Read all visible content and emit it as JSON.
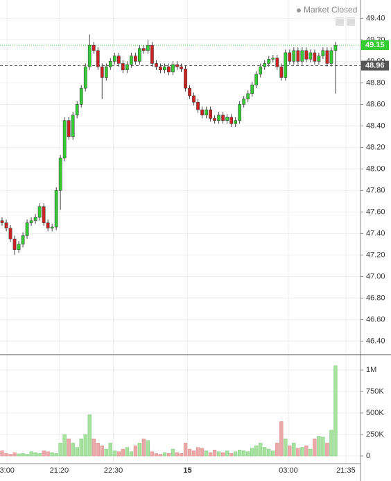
{
  "chart_data": {
    "type": "candlestick",
    "status": "Market Closed",
    "open": [
      47.52,
      47.5,
      47.45,
      47.35,
      47.25,
      47.3,
      47.38,
      47.5,
      47.52,
      47.55,
      47.65,
      47.5,
      47.45,
      47.46,
      47.8,
      48.1,
      48.45,
      48.3,
      48.5,
      48.6,
      48.75,
      48.95,
      49.15,
      49.1,
      48.95,
      48.85,
      48.95,
      49.0,
      49.05,
      48.98,
      48.92,
      48.97,
      49.05,
      49.0,
      49.12,
      49.1,
      49.15,
      48.98,
      48.95,
      48.92,
      48.95,
      48.9,
      48.97,
      48.95,
      48.93,
      48.75,
      48.68,
      48.62,
      48.55,
      48.5,
      48.55,
      48.47,
      48.45,
      48.5,
      48.45,
      48.48,
      48.42,
      48.45,
      48.6,
      48.65,
      48.7,
      48.78,
      48.88,
      48.95,
      48.98,
      49.02,
      49.03,
      48.95,
      48.85,
      49.08,
      49.0,
      49.1,
      49.0,
      49.1,
      49.02,
      49.08,
      49.0,
      49.05,
      49.1,
      48.98,
      49.1
    ],
    "high": [
      47.55,
      47.53,
      47.48,
      47.38,
      47.33,
      47.41,
      47.53,
      47.55,
      47.58,
      47.68,
      47.68,
      47.53,
      47.49,
      47.83,
      48.13,
      48.48,
      48.48,
      48.53,
      48.63,
      48.78,
      48.98,
      49.25,
      49.18,
      49.13,
      48.98,
      48.98,
      49.03,
      49.08,
      49.08,
      49.01,
      49.0,
      49.08,
      49.08,
      49.15,
      49.15,
      49.2,
      49.18,
      49.01,
      48.98,
      48.98,
      48.98,
      49.0,
      49.0,
      48.98,
      48.96,
      48.78,
      48.71,
      48.65,
      48.58,
      48.58,
      48.58,
      48.5,
      48.53,
      48.53,
      48.51,
      48.51,
      48.48,
      48.63,
      48.68,
      48.73,
      48.81,
      48.91,
      48.98,
      49.01,
      49.05,
      49.06,
      49.06,
      48.98,
      49.11,
      49.11,
      49.13,
      49.13,
      49.13,
      49.13,
      49.11,
      49.11,
      49.08,
      49.13,
      49.13,
      49.13,
      49.18
    ],
    "low": [
      47.47,
      47.42,
      47.32,
      47.2,
      47.22,
      47.27,
      47.35,
      47.47,
      47.49,
      47.52,
      47.47,
      47.42,
      47.42,
      47.43,
      47.62,
      48.07,
      48.27,
      48.27,
      48.47,
      48.57,
      48.72,
      48.92,
      49.07,
      48.92,
      48.65,
      48.82,
      48.92,
      48.97,
      48.95,
      48.89,
      48.89,
      48.94,
      48.97,
      48.97,
      49.07,
      49.07,
      48.95,
      48.92,
      48.89,
      48.89,
      48.87,
      48.87,
      48.92,
      48.9,
      48.72,
      48.65,
      48.59,
      48.52,
      48.47,
      48.47,
      48.44,
      48.42,
      48.42,
      48.42,
      48.42,
      48.39,
      48.39,
      48.42,
      48.57,
      48.62,
      48.67,
      48.75,
      48.85,
      48.92,
      48.95,
      48.99,
      48.92,
      48.82,
      48.82,
      48.97,
      48.97,
      48.97,
      48.97,
      48.99,
      48.99,
      48.97,
      48.97,
      49.02,
      48.95,
      48.95,
      48.7
    ],
    "close": [
      47.5,
      47.45,
      47.35,
      47.25,
      47.3,
      47.38,
      47.5,
      47.52,
      47.55,
      47.65,
      47.5,
      47.45,
      47.46,
      47.8,
      48.1,
      48.45,
      48.3,
      48.5,
      48.6,
      48.75,
      48.95,
      49.15,
      49.1,
      48.95,
      48.85,
      48.95,
      49.0,
      49.05,
      48.98,
      48.92,
      48.97,
      49.05,
      49.0,
      49.12,
      49.1,
      49.15,
      48.98,
      48.95,
      48.92,
      48.95,
      48.9,
      48.97,
      48.95,
      48.93,
      48.75,
      48.68,
      48.62,
      48.55,
      48.5,
      48.55,
      48.47,
      48.45,
      48.5,
      48.45,
      48.48,
      48.42,
      48.45,
      48.6,
      48.65,
      48.7,
      48.78,
      48.88,
      48.95,
      48.98,
      49.02,
      49.03,
      48.95,
      48.85,
      49.08,
      49.0,
      49.1,
      49.0,
      49.1,
      49.02,
      49.08,
      49.0,
      49.05,
      49.1,
      48.98,
      49.1,
      49.15
    ],
    "volume": [
      60000,
      30000,
      20000,
      40000,
      25000,
      30000,
      20000,
      50000,
      40000,
      30000,
      60000,
      50000,
      40000,
      30000,
      150000,
      250000,
      200000,
      150000,
      100000,
      200000,
      250000,
      480000,
      200000,
      150000,
      120000,
      80000,
      150000,
      60000,
      50000,
      80000,
      100000,
      50000,
      120000,
      150000,
      200000,
      180000,
      50000,
      30000,
      20000,
      40000,
      30000,
      80000,
      40000,
      30000,
      150000,
      80000,
      60000,
      100000,
      90000,
      60000,
      40000,
      70000,
      50000,
      40000,
      60000,
      30000,
      50000,
      70000,
      60000,
      50000,
      90000,
      120000,
      150000,
      100000,
      80000,
      60000,
      150000,
      400000,
      200000,
      120000,
      150000,
      90000,
      100000,
      120000,
      80000,
      200000,
      230000,
      220000,
      150000,
      300000,
      1050000
    ],
    "up_color": "#33cc33",
    "down_color": "#cc2222",
    "up_volume_color": "#a8e0a0",
    "down_volume_color": "#eaa8a8",
    "xlim": [
      -0.5,
      86
    ],
    "xticks": [
      {
        "value": 1.2,
        "label": "3:00"
      },
      {
        "value": 13.7,
        "label": "21:20"
      },
      {
        "value": 26.7,
        "label": "22:30"
      },
      {
        "value": 44.5,
        "label": "15"
      },
      {
        "value": 68.7,
        "label": "03:00"
      },
      {
        "value": 82.5,
        "label": "21:35"
      }
    ],
    "ylim": [
      46.28,
      49.57
    ],
    "yticks": [
      {
        "value": 46.4,
        "label": "46.40"
      },
      {
        "value": 46.6,
        "label": "46.60"
      },
      {
        "value": 46.8,
        "label": "46.80"
      },
      {
        "value": 47.0,
        "label": "47.00"
      },
      {
        "value": 47.2,
        "label": "47.20"
      },
      {
        "value": 47.4,
        "label": "47.40"
      },
      {
        "value": 47.6,
        "label": "47.60"
      },
      {
        "value": 47.8,
        "label": "47.80"
      },
      {
        "value": 48.0,
        "label": "48.00"
      },
      {
        "value": 48.2,
        "label": "48.20"
      },
      {
        "value": 48.4,
        "label": "48.40"
      },
      {
        "value": 48.6,
        "label": "48.60"
      },
      {
        "value": 48.8,
        "label": "48.80"
      },
      {
        "value": 49.0,
        "label": "49.00"
      },
      {
        "value": 49.2,
        "label": "49.20"
      },
      {
        "value": 49.4,
        "label": "49.40"
      }
    ],
    "volume_ylim": [
      -89000,
      1170000
    ],
    "volume_yticks": [
      0,
      {
        "value": 250000,
        "label": "250K"
      },
      {
        "value": 500000,
        "label": "500K"
      },
      {
        "value": 750000,
        "label": "750K"
      },
      {
        "value": 1000000,
        "label": "1M"
      }
    ],
    "last_price": 49.15,
    "prev_close": 48.96,
    "grid": true
  }
}
